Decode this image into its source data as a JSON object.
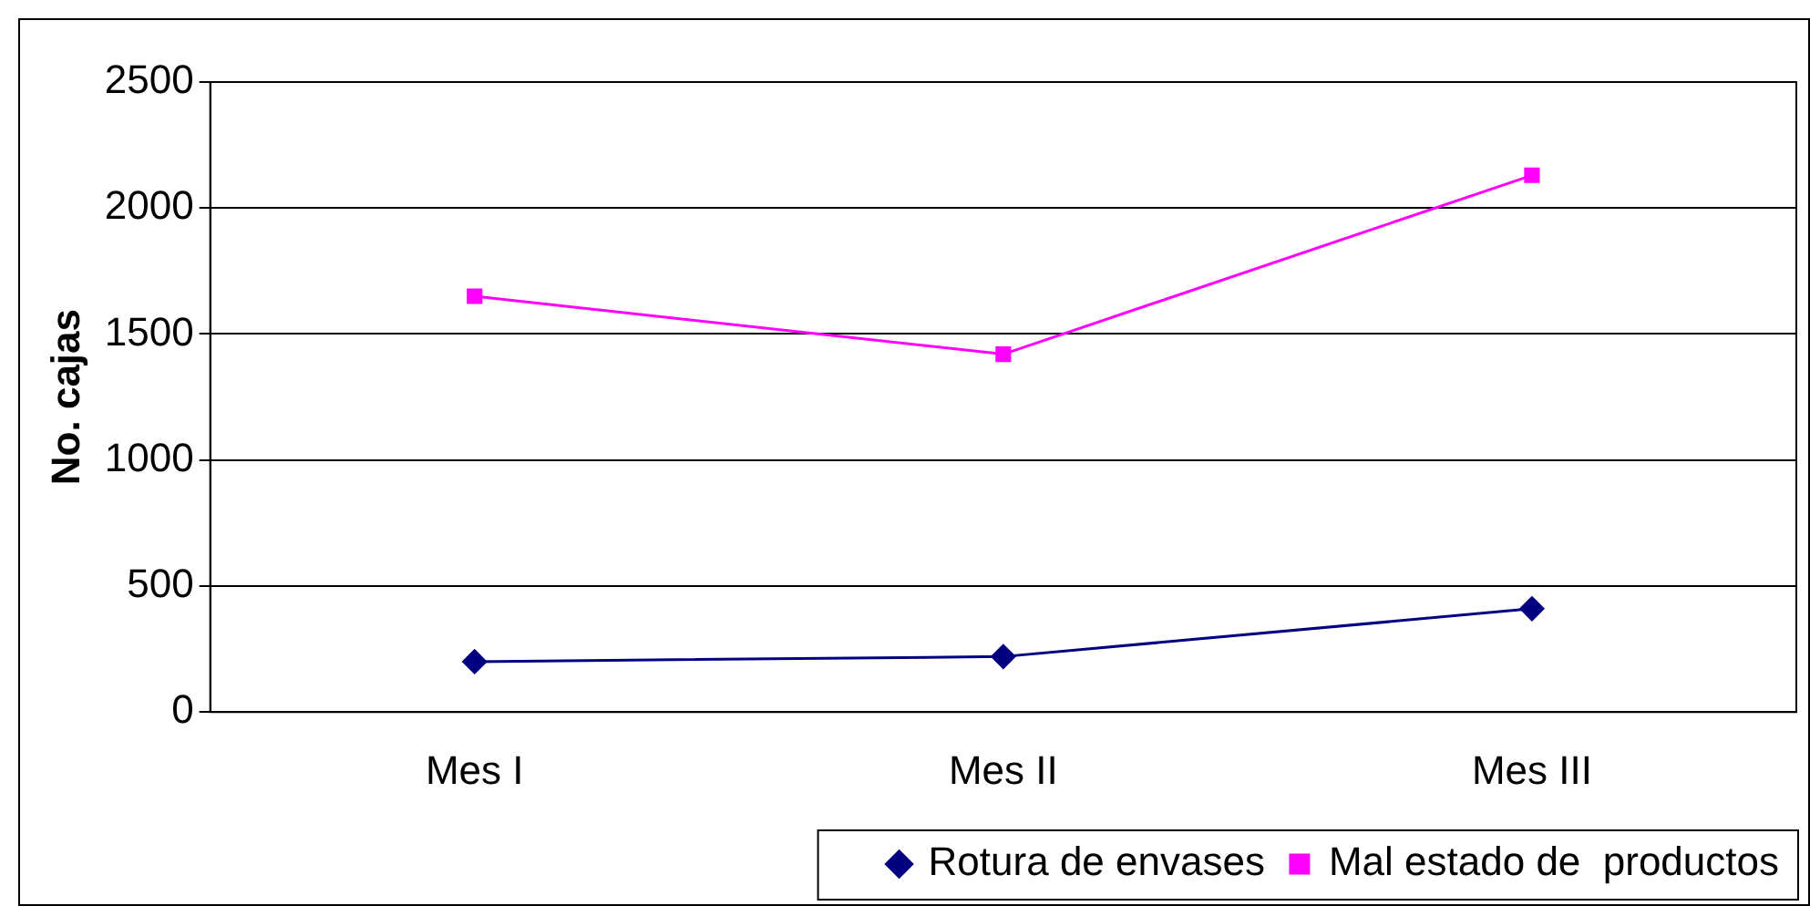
{
  "chart_data": {
    "type": "line",
    "ylabel": "No. cajas",
    "categories": [
      "Mes I",
      "Mes II",
      "Mes III"
    ],
    "series": [
      {
        "name": "Rotura de envases",
        "color": "#000080",
        "values": [
          200,
          220,
          410
        ],
        "marker": "diamond"
      },
      {
        "name": "Mal estado de  productos",
        "color": "#ff00ff",
        "values": [
          1650,
          1420,
          2130
        ],
        "marker": "square"
      }
    ],
    "ylim": [
      0,
      2500
    ],
    "yticks": [
      0,
      500,
      1000,
      1500,
      2000,
      2500
    ],
    "grid": "y",
    "legend": "bottom"
  }
}
